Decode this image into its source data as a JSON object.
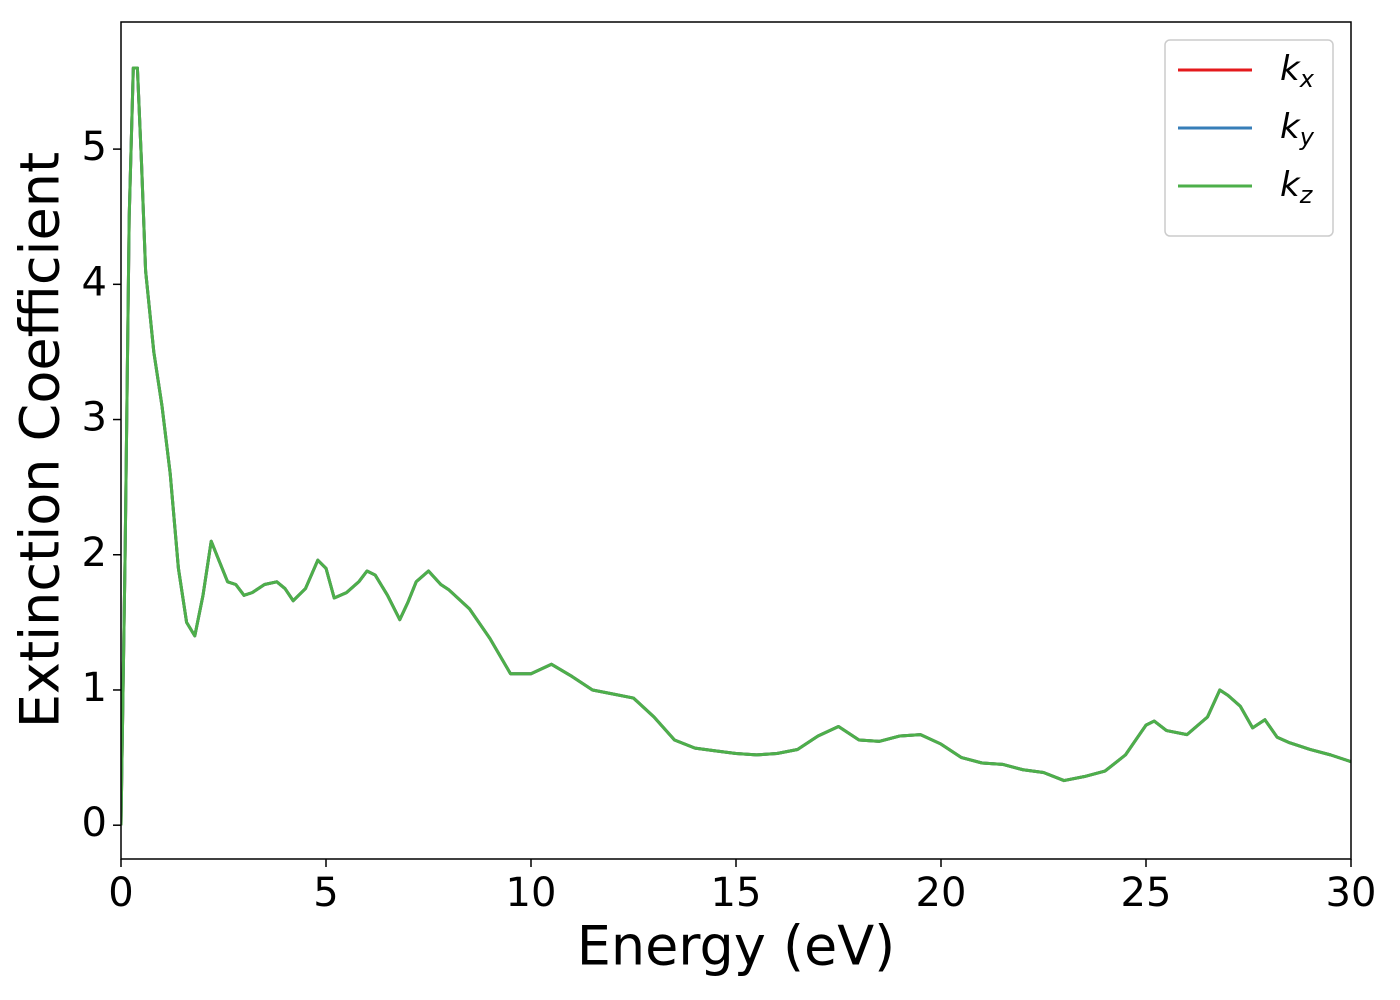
{
  "chart_data": {
    "type": "line",
    "xlabel": "Energy (eV)",
    "ylabel": "Extinction Coefficient",
    "x": [
      0,
      0.1,
      0.2,
      0.3,
      0.4,
      0.5,
      0.6,
      0.8,
      1.0,
      1.2,
      1.4,
      1.6,
      1.8,
      2.0,
      2.2,
      2.4,
      2.6,
      2.8,
      3.0,
      3.2,
      3.5,
      3.8,
      4.0,
      4.2,
      4.5,
      4.8,
      5.0,
      5.2,
      5.5,
      5.8,
      6.0,
      6.2,
      6.5,
      6.8,
      7.0,
      7.2,
      7.5,
      7.8,
      8.0,
      8.5,
      9,
      9.5,
      10,
      10.5,
      11,
      11.5,
      12,
      12.5,
      13,
      13.5,
      14,
      14.5,
      15,
      15.5,
      16,
      16.5,
      17,
      17.5,
      18,
      18.5,
      19,
      19.5,
      20,
      20.5,
      21,
      21.5,
      22,
      22.5,
      23,
      23.5,
      24,
      24.5,
      25,
      25.2,
      25.5,
      26,
      26.5,
      26.8,
      27,
      27.3,
      27.6,
      27.9,
      28.2,
      28.5,
      29,
      29.5,
      30
    ],
    "series": [
      {
        "name": "kx",
        "color": "#e41a1c",
        "values": [
          0,
          2.0,
          4.5,
          5.6,
          5.6,
          4.9,
          4.1,
          3.5,
          3.1,
          2.6,
          1.9,
          1.5,
          1.4,
          1.7,
          2.1,
          1.95,
          1.8,
          1.78,
          1.7,
          1.72,
          1.78,
          1.8,
          1.75,
          1.66,
          1.75,
          1.96,
          1.9,
          1.68,
          1.72,
          1.8,
          1.88,
          1.85,
          1.7,
          1.52,
          1.65,
          1.8,
          1.88,
          1.78,
          1.74,
          1.6,
          1.38,
          1.12,
          1.12,
          1.19,
          1.1,
          1.0,
          0.97,
          0.94,
          0.8,
          0.63,
          0.57,
          0.55,
          0.53,
          0.52,
          0.53,
          0.56,
          0.66,
          0.73,
          0.63,
          0.62,
          0.66,
          0.67,
          0.6,
          0.5,
          0.46,
          0.45,
          0.41,
          0.39,
          0.33,
          0.36,
          0.4,
          0.52,
          0.74,
          0.77,
          0.7,
          0.67,
          0.8,
          1.0,
          0.96,
          0.88,
          0.72,
          0.78,
          0.65,
          0.61,
          0.56,
          0.52,
          0.47
        ]
      },
      {
        "name": "ky",
        "color": "#377eb8",
        "values": [
          0,
          2.0,
          4.5,
          5.6,
          5.6,
          4.9,
          4.1,
          3.5,
          3.1,
          2.6,
          1.9,
          1.5,
          1.4,
          1.7,
          2.1,
          1.95,
          1.8,
          1.78,
          1.7,
          1.72,
          1.78,
          1.8,
          1.75,
          1.66,
          1.75,
          1.96,
          1.9,
          1.68,
          1.72,
          1.8,
          1.88,
          1.85,
          1.7,
          1.52,
          1.65,
          1.8,
          1.88,
          1.78,
          1.74,
          1.6,
          1.38,
          1.12,
          1.12,
          1.19,
          1.1,
          1.0,
          0.97,
          0.94,
          0.8,
          0.63,
          0.57,
          0.55,
          0.53,
          0.52,
          0.53,
          0.56,
          0.66,
          0.73,
          0.63,
          0.62,
          0.66,
          0.67,
          0.6,
          0.5,
          0.46,
          0.45,
          0.41,
          0.39,
          0.33,
          0.36,
          0.4,
          0.52,
          0.74,
          0.77,
          0.7,
          0.67,
          0.8,
          1.0,
          0.96,
          0.88,
          0.72,
          0.78,
          0.65,
          0.61,
          0.56,
          0.52,
          0.47
        ]
      },
      {
        "name": "kz",
        "color": "#4daf4a",
        "values": [
          0,
          2.0,
          4.5,
          5.6,
          5.6,
          4.9,
          4.1,
          3.5,
          3.1,
          2.6,
          1.9,
          1.5,
          1.4,
          1.7,
          2.1,
          1.95,
          1.8,
          1.78,
          1.7,
          1.72,
          1.78,
          1.8,
          1.75,
          1.66,
          1.75,
          1.96,
          1.9,
          1.68,
          1.72,
          1.8,
          1.88,
          1.85,
          1.7,
          1.52,
          1.65,
          1.8,
          1.88,
          1.78,
          1.74,
          1.6,
          1.38,
          1.12,
          1.12,
          1.19,
          1.1,
          1.0,
          0.97,
          0.94,
          0.8,
          0.63,
          0.57,
          0.55,
          0.53,
          0.52,
          0.53,
          0.56,
          0.66,
          0.73,
          0.63,
          0.62,
          0.66,
          0.67,
          0.6,
          0.5,
          0.46,
          0.45,
          0.41,
          0.39,
          0.33,
          0.36,
          0.4,
          0.52,
          0.74,
          0.77,
          0.7,
          0.67,
          0.8,
          1.0,
          0.96,
          0.88,
          0.72,
          0.78,
          0.65,
          0.61,
          0.56,
          0.52,
          0.47
        ]
      }
    ],
    "xlim": [
      0,
      30
    ],
    "xticks": [
      0,
      5,
      10,
      15,
      20,
      25,
      30
    ],
    "ylim": [
      -0.25,
      5.94
    ],
    "yticks": [
      0,
      1,
      2,
      3,
      4,
      5
    ],
    "grid": false,
    "legend": "upper right"
  }
}
